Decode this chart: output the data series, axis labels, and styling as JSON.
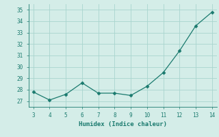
{
  "x": [
    3,
    4,
    5,
    6,
    7,
    8,
    9,
    10,
    11,
    12,
    13,
    14
  ],
  "y": [
    27.8,
    27.1,
    27.6,
    28.6,
    27.7,
    27.7,
    27.5,
    28.3,
    29.5,
    31.4,
    33.6,
    34.8
  ],
  "line_color": "#1a7a6e",
  "marker": "D",
  "marker_size": 2.5,
  "xlabel": "Humidex (Indice chaleur)",
  "xlim": [
    2.7,
    14.3
  ],
  "ylim": [
    26.5,
    35.5
  ],
  "yticks": [
    27,
    28,
    29,
    30,
    31,
    32,
    33,
    34,
    35
  ],
  "xticks": [
    3,
    4,
    5,
    6,
    7,
    8,
    9,
    10,
    11,
    12,
    13,
    14
  ],
  "bg_color": "#d4ede8",
  "grid_color": "#a8d5ce",
  "font_family": "monospace",
  "tick_fontsize": 5.5,
  "xlabel_fontsize": 6.5
}
